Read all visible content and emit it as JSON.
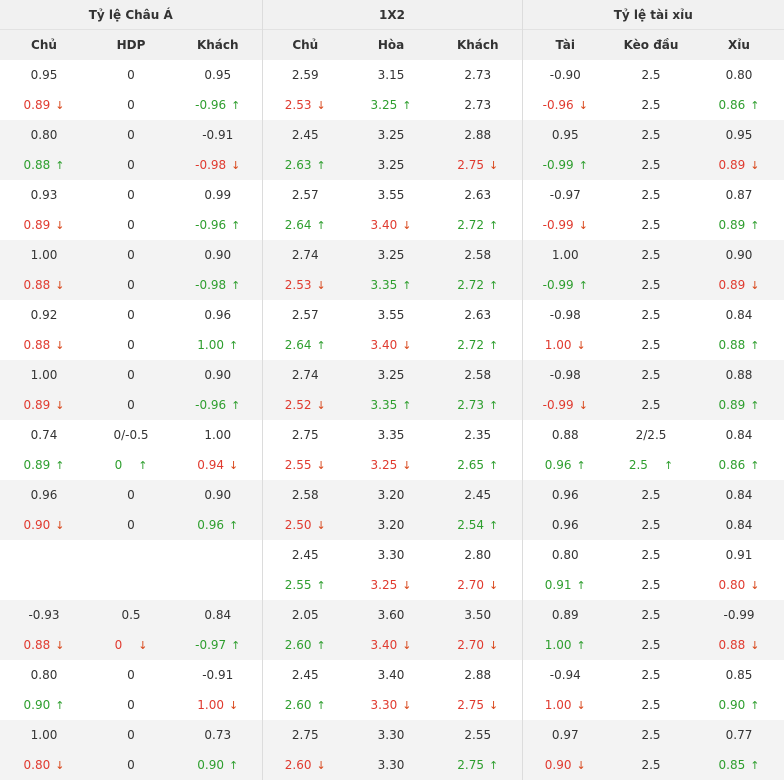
{
  "groups": [
    "Tỷ lệ Châu Á",
    "1X2",
    "Tỷ lệ tài xỉu"
  ],
  "columns": [
    "Chủ",
    "HDP",
    "Khách",
    "Chủ",
    "Hòa",
    "Khách",
    "Tài",
    "Kèo đầu",
    "Xỉu"
  ],
  "colors": {
    "up": "#2e9e2e",
    "down": "#e03a2f",
    "header_bg": "#f1f1f1",
    "shade_bg": "#f3f3f3"
  },
  "rows": [
    [
      [
        "0.95"
      ],
      [
        "0"
      ],
      [
        "0.95"
      ],
      [
        "2.59"
      ],
      [
        "3.15"
      ],
      [
        "2.73"
      ],
      [
        "-0.90"
      ],
      [
        "2.5"
      ],
      [
        "0.80"
      ]
    ],
    [
      [
        "0.89",
        "down"
      ],
      [
        "0"
      ],
      [
        "-0.96",
        "up"
      ],
      [
        "2.53",
        "down"
      ],
      [
        "3.25",
        "up"
      ],
      [
        "2.73"
      ],
      [
        "-0.96",
        "down"
      ],
      [
        "2.5"
      ],
      [
        "0.86",
        "up"
      ]
    ],
    [
      [
        "0.80"
      ],
      [
        "0"
      ],
      [
        "-0.91"
      ],
      [
        "2.45"
      ],
      [
        "3.25"
      ],
      [
        "2.88"
      ],
      [
        "0.95"
      ],
      [
        "2.5"
      ],
      [
        "0.95"
      ]
    ],
    [
      [
        "0.88",
        "up"
      ],
      [
        "0"
      ],
      [
        "-0.98",
        "down"
      ],
      [
        "2.63",
        "up"
      ],
      [
        "3.25"
      ],
      [
        "2.75",
        "down"
      ],
      [
        "-0.99",
        "up"
      ],
      [
        "2.5"
      ],
      [
        "0.89",
        "down"
      ]
    ],
    [
      [
        "0.93"
      ],
      [
        "0"
      ],
      [
        "0.99"
      ],
      [
        "2.57"
      ],
      [
        "3.55"
      ],
      [
        "2.63"
      ],
      [
        "-0.97"
      ],
      [
        "2.5"
      ],
      [
        "0.87"
      ]
    ],
    [
      [
        "0.89",
        "down"
      ],
      [
        "0"
      ],
      [
        "-0.96",
        "up"
      ],
      [
        "2.64",
        "up"
      ],
      [
        "3.40",
        "down"
      ],
      [
        "2.72",
        "up"
      ],
      [
        "-0.99",
        "down"
      ],
      [
        "2.5"
      ],
      [
        "0.89",
        "up"
      ]
    ],
    [
      [
        "1.00"
      ],
      [
        "0"
      ],
      [
        "0.90"
      ],
      [
        "2.74"
      ],
      [
        "3.25"
      ],
      [
        "2.58"
      ],
      [
        "1.00"
      ],
      [
        "2.5"
      ],
      [
        "0.90"
      ]
    ],
    [
      [
        "0.88",
        "down"
      ],
      [
        "0"
      ],
      [
        "-0.98",
        "up"
      ],
      [
        "2.53",
        "down"
      ],
      [
        "3.35",
        "up"
      ],
      [
        "2.72",
        "up"
      ],
      [
        "-0.99",
        "up"
      ],
      [
        "2.5"
      ],
      [
        "0.89",
        "down"
      ]
    ],
    [
      [
        "0.92"
      ],
      [
        "0"
      ],
      [
        "0.96"
      ],
      [
        "2.57"
      ],
      [
        "3.55"
      ],
      [
        "2.63"
      ],
      [
        "-0.98"
      ],
      [
        "2.5"
      ],
      [
        "0.84"
      ]
    ],
    [
      [
        "0.88",
        "down"
      ],
      [
        "0"
      ],
      [
        "1.00",
        "up"
      ],
      [
        "2.64",
        "up"
      ],
      [
        "3.40",
        "down"
      ],
      [
        "2.72",
        "up"
      ],
      [
        "1.00",
        "down"
      ],
      [
        "2.5"
      ],
      [
        "0.88",
        "up"
      ]
    ],
    [
      [
        "1.00"
      ],
      [
        "0"
      ],
      [
        "0.90"
      ],
      [
        "2.74"
      ],
      [
        "3.25"
      ],
      [
        "2.58"
      ],
      [
        "-0.98"
      ],
      [
        "2.5"
      ],
      [
        "0.88"
      ]
    ],
    [
      [
        "0.89",
        "down"
      ],
      [
        "0"
      ],
      [
        "-0.96",
        "up"
      ],
      [
        "2.52",
        "down"
      ],
      [
        "3.35",
        "up"
      ],
      [
        "2.73",
        "up"
      ],
      [
        "-0.99",
        "down"
      ],
      [
        "2.5"
      ],
      [
        "0.89",
        "up"
      ]
    ],
    [
      [
        "0.74"
      ],
      [
        "0/-0.5"
      ],
      [
        "1.00"
      ],
      [
        "2.75"
      ],
      [
        "3.35"
      ],
      [
        "2.35"
      ],
      [
        "0.88"
      ],
      [
        "2/2.5"
      ],
      [
        "0.84"
      ]
    ],
    [
      [
        "0.89",
        "up"
      ],
      [
        "0",
        "up"
      ],
      [
        "0.94",
        "down"
      ],
      [
        "2.55",
        "down"
      ],
      [
        "3.25",
        "down"
      ],
      [
        "2.65",
        "up"
      ],
      [
        "0.96",
        "up"
      ],
      [
        "2.5",
        "up"
      ],
      [
        "0.86",
        "up"
      ]
    ],
    [
      [
        "0.96"
      ],
      [
        "0"
      ],
      [
        "0.90"
      ],
      [
        "2.58"
      ],
      [
        "3.20"
      ],
      [
        "2.45"
      ],
      [
        "0.96"
      ],
      [
        "2.5"
      ],
      [
        "0.84"
      ]
    ],
    [
      [
        "0.90",
        "down"
      ],
      [
        "0"
      ],
      [
        "0.96",
        "up"
      ],
      [
        "2.50",
        "down"
      ],
      [
        "3.20"
      ],
      [
        "2.54",
        "up"
      ],
      [
        "0.96"
      ],
      [
        "2.5"
      ],
      [
        "0.84"
      ]
    ],
    [
      [
        ""
      ],
      [
        ""
      ],
      [
        ""
      ],
      [
        "2.45"
      ],
      [
        "3.30"
      ],
      [
        "2.80"
      ],
      [
        "0.80"
      ],
      [
        "2.5"
      ],
      [
        "0.91"
      ]
    ],
    [
      [
        ""
      ],
      [
        ""
      ],
      [
        ""
      ],
      [
        "2.55",
        "up"
      ],
      [
        "3.25",
        "down"
      ],
      [
        "2.70",
        "down"
      ],
      [
        "0.91",
        "up"
      ],
      [
        "2.5"
      ],
      [
        "0.80",
        "down"
      ]
    ],
    [
      [
        "-0.93"
      ],
      [
        "0.5"
      ],
      [
        "0.84"
      ],
      [
        "2.05"
      ],
      [
        "3.60"
      ],
      [
        "3.50"
      ],
      [
        "0.89"
      ],
      [
        "2.5"
      ],
      [
        "-0.99"
      ]
    ],
    [
      [
        "0.88",
        "down"
      ],
      [
        "0",
        "down"
      ],
      [
        "-0.97",
        "up"
      ],
      [
        "2.60",
        "up"
      ],
      [
        "3.40",
        "down"
      ],
      [
        "2.70",
        "down"
      ],
      [
        "1.00",
        "up"
      ],
      [
        "2.5"
      ],
      [
        "0.88",
        "down"
      ]
    ],
    [
      [
        "0.80"
      ],
      [
        "0"
      ],
      [
        "-0.91"
      ],
      [
        "2.45"
      ],
      [
        "3.40"
      ],
      [
        "2.88"
      ],
      [
        "-0.94"
      ],
      [
        "2.5"
      ],
      [
        "0.85"
      ]
    ],
    [
      [
        "0.90",
        "up"
      ],
      [
        "0"
      ],
      [
        "1.00",
        "down"
      ],
      [
        "2.60",
        "up"
      ],
      [
        "3.30",
        "down"
      ],
      [
        "2.75",
        "down"
      ],
      [
        "1.00",
        "down"
      ],
      [
        "2.5"
      ],
      [
        "0.90",
        "up"
      ]
    ],
    [
      [
        "1.00"
      ],
      [
        "0"
      ],
      [
        "0.73"
      ],
      [
        "2.75"
      ],
      [
        "3.30"
      ],
      [
        "2.55"
      ],
      [
        "0.97"
      ],
      [
        "2.5"
      ],
      [
        "0.77"
      ]
    ],
    [
      [
        "0.80",
        "down"
      ],
      [
        "0"
      ],
      [
        "0.90",
        "up"
      ],
      [
        "2.60",
        "down"
      ],
      [
        "3.30"
      ],
      [
        "2.75",
        "up"
      ],
      [
        "0.90",
        "down"
      ],
      [
        "2.5"
      ],
      [
        "0.85",
        "up"
      ]
    ]
  ]
}
